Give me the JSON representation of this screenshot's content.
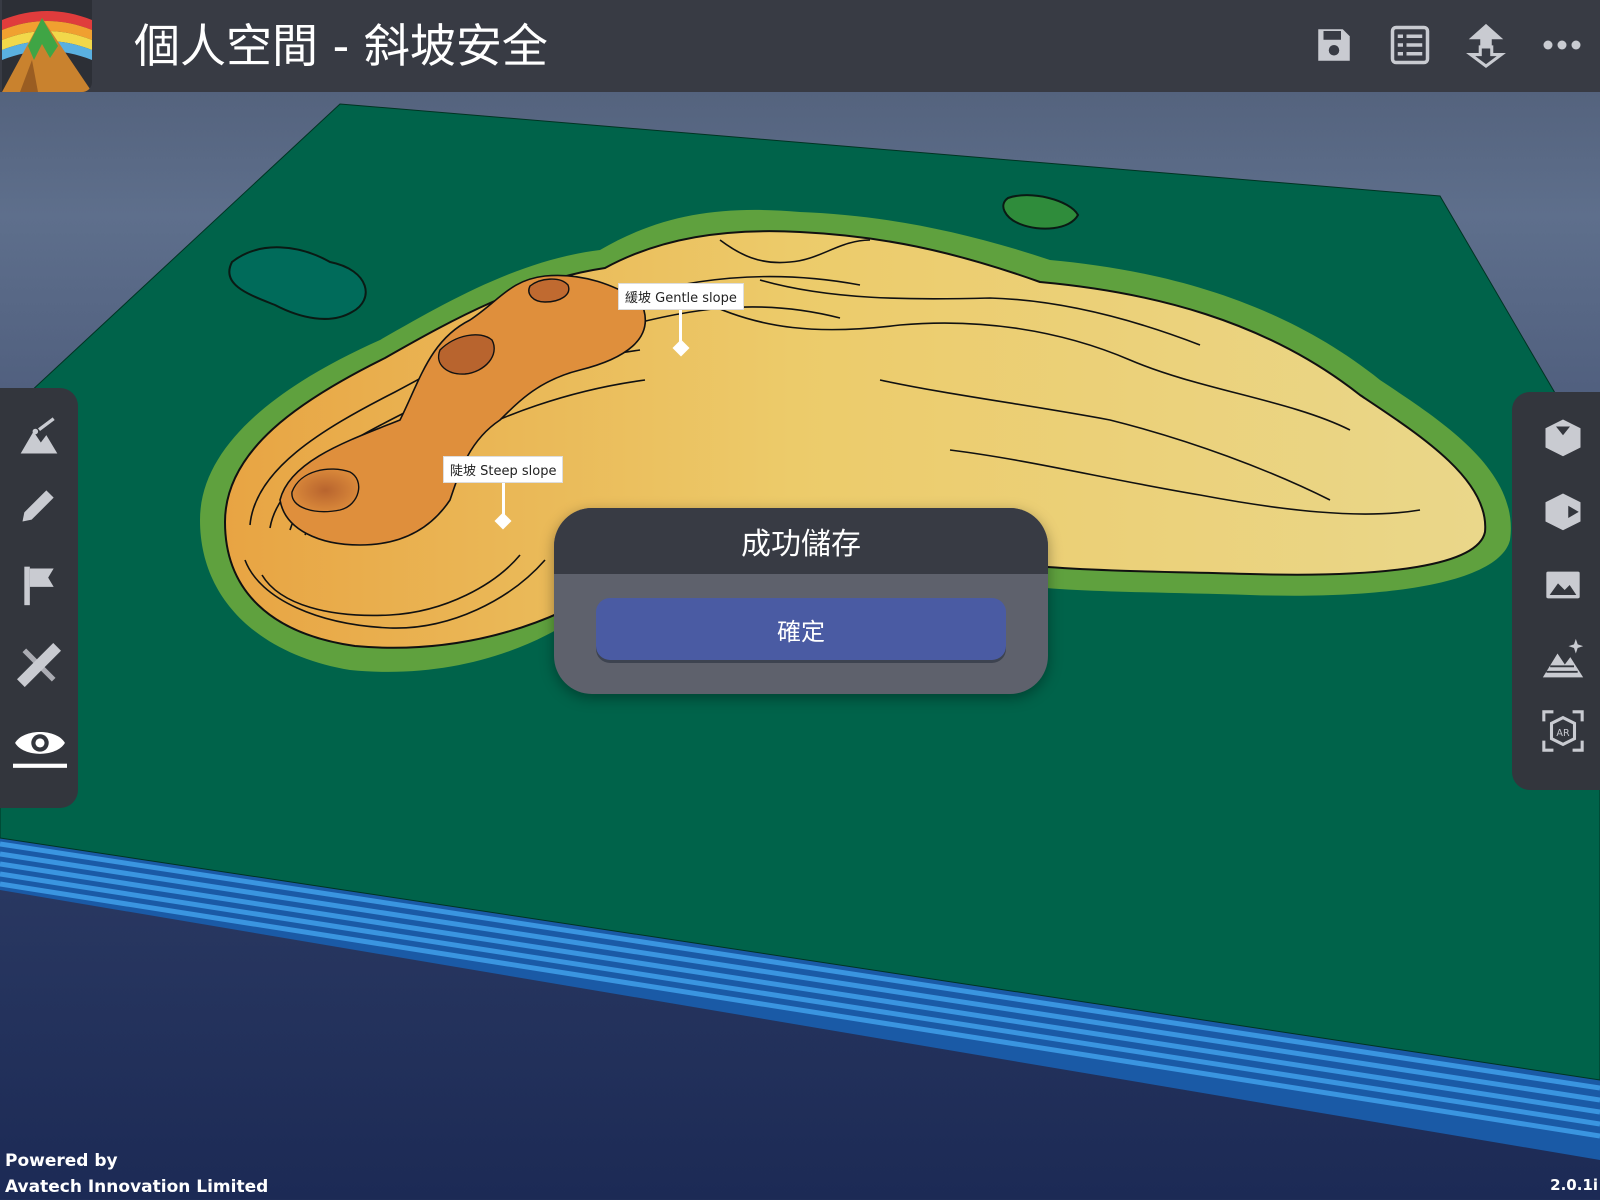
{
  "app": {
    "title": "個人空間 - 斜坡安全",
    "logo_icon": "mountain-rainbow-logo"
  },
  "header_icons": [
    {
      "name": "save-icon"
    },
    {
      "name": "list-icon"
    },
    {
      "name": "import-export-icon"
    },
    {
      "name": "more-icon"
    }
  ],
  "left_tools": [
    {
      "name": "terrain-tool-icon"
    },
    {
      "name": "pencil-tool-icon"
    },
    {
      "name": "flag-tool-icon"
    },
    {
      "name": "measure-tool-icon"
    },
    {
      "name": "eye-view-icon",
      "active": true
    }
  ],
  "right_tools": [
    {
      "name": "box-down-icon"
    },
    {
      "name": "box-right-icon"
    },
    {
      "name": "terrain-image-icon"
    },
    {
      "name": "terrain-sparkle-icon"
    },
    {
      "name": "ar-view-icon"
    }
  ],
  "markers": {
    "gentle": "緩坡 Gentle slope",
    "steep": "陡坡 Steep slope"
  },
  "dialog": {
    "title": "成功儲存",
    "confirm_label": "確定"
  },
  "footer": {
    "powered_line1": "Powered by",
    "powered_line2": "Avatech Innovation Limited",
    "version": "2.0.1i"
  },
  "colors": {
    "topbar": "#383b44",
    "board": "#00634a",
    "water_stripe": "#2d82d4",
    "button": "#4a5ba3"
  }
}
